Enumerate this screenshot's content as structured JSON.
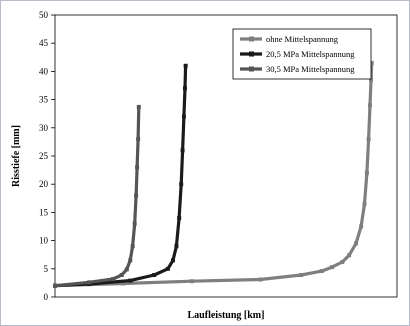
{
  "chart_data": {
    "type": "line",
    "title": "",
    "xlabel": "Laufleistung [km]",
    "ylabel": "Risstiefe [mm]",
    "ylim": [
      0,
      50
    ],
    "yticks": [
      0,
      5,
      10,
      15,
      20,
      25,
      30,
      35,
      40,
      45,
      50
    ],
    "xlim": [
      0,
      100
    ],
    "x_tick_labels_shown": false,
    "grid": false,
    "legend_position": "top-right",
    "series": [
      {
        "name": "ohne Mittelspannung",
        "color": "#7f7f7f",
        "points": [
          [
            0,
            2.0
          ],
          [
            20,
            2.4
          ],
          [
            40,
            2.8
          ],
          [
            60,
            3.1
          ],
          [
            72,
            3.9
          ],
          [
            78,
            4.6
          ],
          [
            81,
            5.3
          ],
          [
            84,
            6.2
          ],
          [
            86,
            7.4
          ],
          [
            88,
            9.5
          ],
          [
            89.5,
            12.5
          ],
          [
            90.5,
            16.5
          ],
          [
            91.2,
            22
          ],
          [
            91.7,
            28
          ],
          [
            92.1,
            34
          ],
          [
            92.4,
            38.5
          ],
          [
            92.6,
            41.5
          ]
        ]
      },
      {
        "name": "20,5 MPa Mittelspannung",
        "color": "#1a1a1a",
        "points": [
          [
            0,
            2.0
          ],
          [
            10,
            2.3
          ],
          [
            22,
            2.9
          ],
          [
            29,
            3.9
          ],
          [
            33,
            5.0
          ],
          [
            34.5,
            6.5
          ],
          [
            35.5,
            9.0
          ],
          [
            36.3,
            14
          ],
          [
            36.9,
            20
          ],
          [
            37.3,
            26
          ],
          [
            37.7,
            32
          ],
          [
            38.0,
            37
          ],
          [
            38.2,
            41.0
          ]
        ]
      },
      {
        "name": "30,5 MPa Mittelspannung",
        "color": "#555555",
        "points": [
          [
            0,
            2.0
          ],
          [
            10,
            2.6
          ],
          [
            17,
            3.2
          ],
          [
            19.5,
            3.9
          ],
          [
            21,
            4.9
          ],
          [
            22,
            6.5
          ],
          [
            22.7,
            9.0
          ],
          [
            23.3,
            13
          ],
          [
            23.7,
            18
          ],
          [
            24.0,
            23
          ],
          [
            24.3,
            28
          ],
          [
            24.5,
            33.7
          ]
        ]
      }
    ]
  }
}
